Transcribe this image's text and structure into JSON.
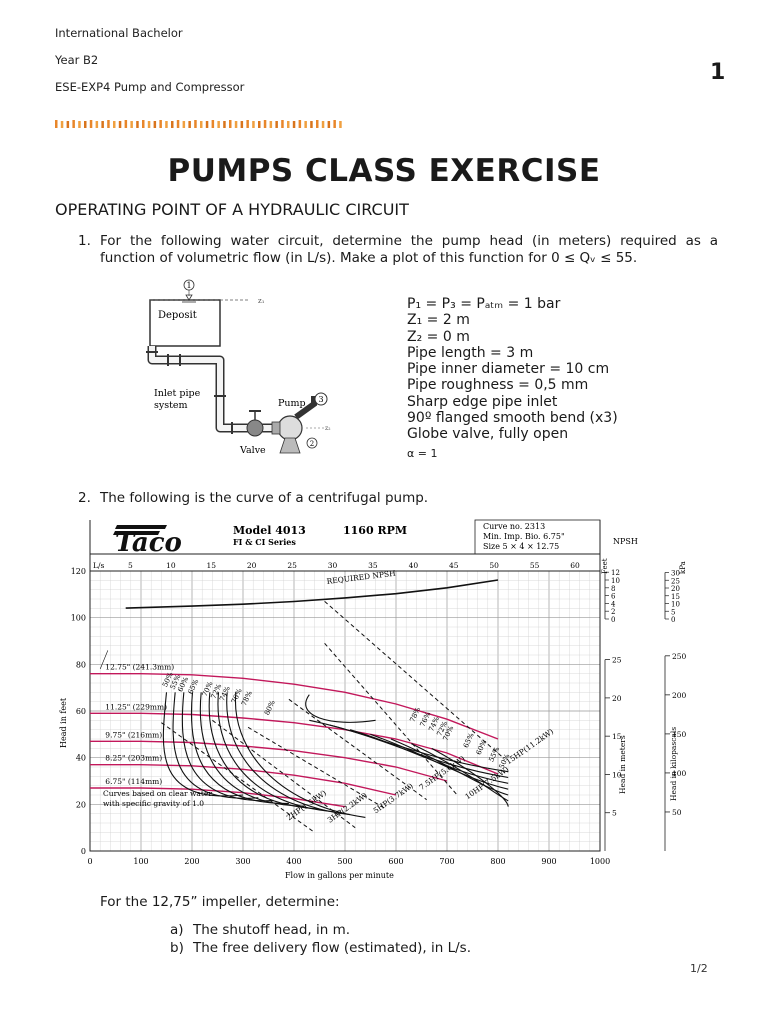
{
  "header": {
    "line1": "International Bachelor",
    "line2": "Year B2",
    "line3": "ESE-EXP4 Pump and Compressor",
    "page_mark": "1"
  },
  "title": "PUMPS CLASS EXERCISE",
  "subtitle": "OPERATING POINT OF A HYDRAULIC CIRCUIT",
  "q1": {
    "num": "1.",
    "text": "For the following water circuit, determine the pump head (in meters) required as a function of volumetric flow (in L/s). Make a plot of this function for 0 ≤ Qᵥ ≤ 55."
  },
  "circuit": {
    "deposit": "Deposit",
    "inlet1": "Inlet pipe",
    "inlet2": "system",
    "pump": "Pump",
    "valve": "Valve",
    "p1": "1",
    "p2": "2",
    "p3": "3",
    "z1": "z₁",
    "z2": "z₂"
  },
  "givens": [
    "P₁ = P₃ = Pₐₜₘ = 1 bar",
    "Z₁ = 2 m",
    "Z₂ = 0 m",
    "Pipe length = 3 m",
    "Pipe inner diameter = 10 cm",
    "Pipe roughness = 0,5 mm",
    "Sharp edge pipe inlet",
    "90º flanged smooth bend (x3)",
    "Globe valve, fully open"
  ],
  "alpha": "α = 1",
  "q2": {
    "num": "2.",
    "text": "The following is the curve of a centrifugal pump."
  },
  "chart_data": {
    "type": "line",
    "brand": "Taco",
    "model": "Model 4013",
    "series_name": "FI & CI Series",
    "rpm": "1160 RPM",
    "curve_no": "Curve no. 2313",
    "min_imp": "Min. Imp. Bio. 6.75\"",
    "size": "Size 5 × 4 × 12.75",
    "xlabel": "Flow in gallons per minute",
    "ylabel": "Head in feet",
    "ylabel_right_m": "Head in meters",
    "ylabel_right_kpa": "Head in kilopascals",
    "npsh_label": "NPSH",
    "feet_label": "Feet",
    "kpa_label": "kPa",
    "ls_label": "L/s",
    "required_npsh": "REQUIRED NPSH",
    "note1": "Curves based on clear water",
    "note2": "with specific gravity of 1.0",
    "xlim": [
      0,
      1000
    ],
    "ylim": [
      0,
      120
    ],
    "x_ticks": [
      0,
      100,
      200,
      300,
      400,
      500,
      600,
      700,
      800,
      900,
      1000
    ],
    "y_ticks": [
      0,
      20,
      40,
      60,
      80,
      100,
      120
    ],
    "ls_ticks": [
      5,
      10,
      15,
      20,
      25,
      30,
      35,
      40,
      45,
      50,
      55,
      60
    ],
    "m_ticks": [
      5,
      10,
      15,
      20,
      25
    ],
    "kpa_ticks": [
      50,
      100,
      150,
      200,
      250
    ],
    "npsh_feet_ticks": [
      0,
      2,
      4,
      6,
      8,
      10,
      12
    ],
    "npsh_kpa_ticks": [
      0,
      5,
      10,
      15,
      20,
      25,
      30
    ],
    "grid": true,
    "series": [
      {
        "name": "12.75\" (241.3mm)",
        "x": [
          0,
          100,
          200,
          300,
          400,
          500,
          600,
          700,
          800
        ],
        "y": [
          76,
          76,
          75.5,
          74,
          71.5,
          68,
          63,
          56.5,
          48
        ]
      },
      {
        "name": "11.25\" (229mm)",
        "x": [
          0,
          100,
          200,
          300,
          400,
          500,
          600,
          700,
          800
        ],
        "y": [
          59,
          59,
          58.5,
          57,
          55,
          52,
          48,
          42,
          33
        ]
      },
      {
        "name": "9.75\" (216mm)",
        "x": [
          0,
          100,
          200,
          300,
          400,
          500,
          600,
          700
        ],
        "y": [
          47,
          47,
          46.5,
          45,
          43,
          40,
          36,
          30
        ]
      },
      {
        "name": "8.25\" (203mm)",
        "x": [
          0,
          100,
          200,
          300,
          400,
          500,
          600
        ],
        "y": [
          37,
          37,
          36.5,
          35,
          32.5,
          29,
          24
        ]
      },
      {
        "name": "6.75\" (114mm)",
        "x": [
          0,
          100,
          200,
          300,
          400,
          500
        ],
        "y": [
          27,
          27,
          26.5,
          25,
          22.5,
          19
        ]
      }
    ],
    "npsh_curve": {
      "x": [
        70,
        200,
        300,
        400,
        500,
        600,
        700,
        800
      ],
      "y": [
        2.8,
        3.3,
        3.8,
        4.5,
        5.4,
        6.5,
        8.0,
        10.0
      ]
    },
    "efficiency_labels": [
      "50%",
      "55%",
      "60%",
      "65%",
      "70%",
      "72%",
      "74%",
      "76%",
      "78%",
      "80%",
      "78%",
      "76%",
      "74%",
      "72%",
      "70%",
      "65%",
      "60%",
      "55%",
      "50%"
    ],
    "hp_labels": [
      "2HP(1.5kW)",
      "3HP(2.2kW)",
      "5HP(3.7kW)",
      "7.5HP(5.6kW)",
      "10HP(7.5kW)",
      "15HP(11.2kW)"
    ]
  },
  "for_text": "For the 12,75” impeller, determine:",
  "sub_a": {
    "letter": "a)",
    "text": "The shutoff head, in m."
  },
  "sub_b": {
    "letter": "b)",
    "text": "The free delivery flow (estimated), in L/s."
  },
  "page_number": "1/2"
}
